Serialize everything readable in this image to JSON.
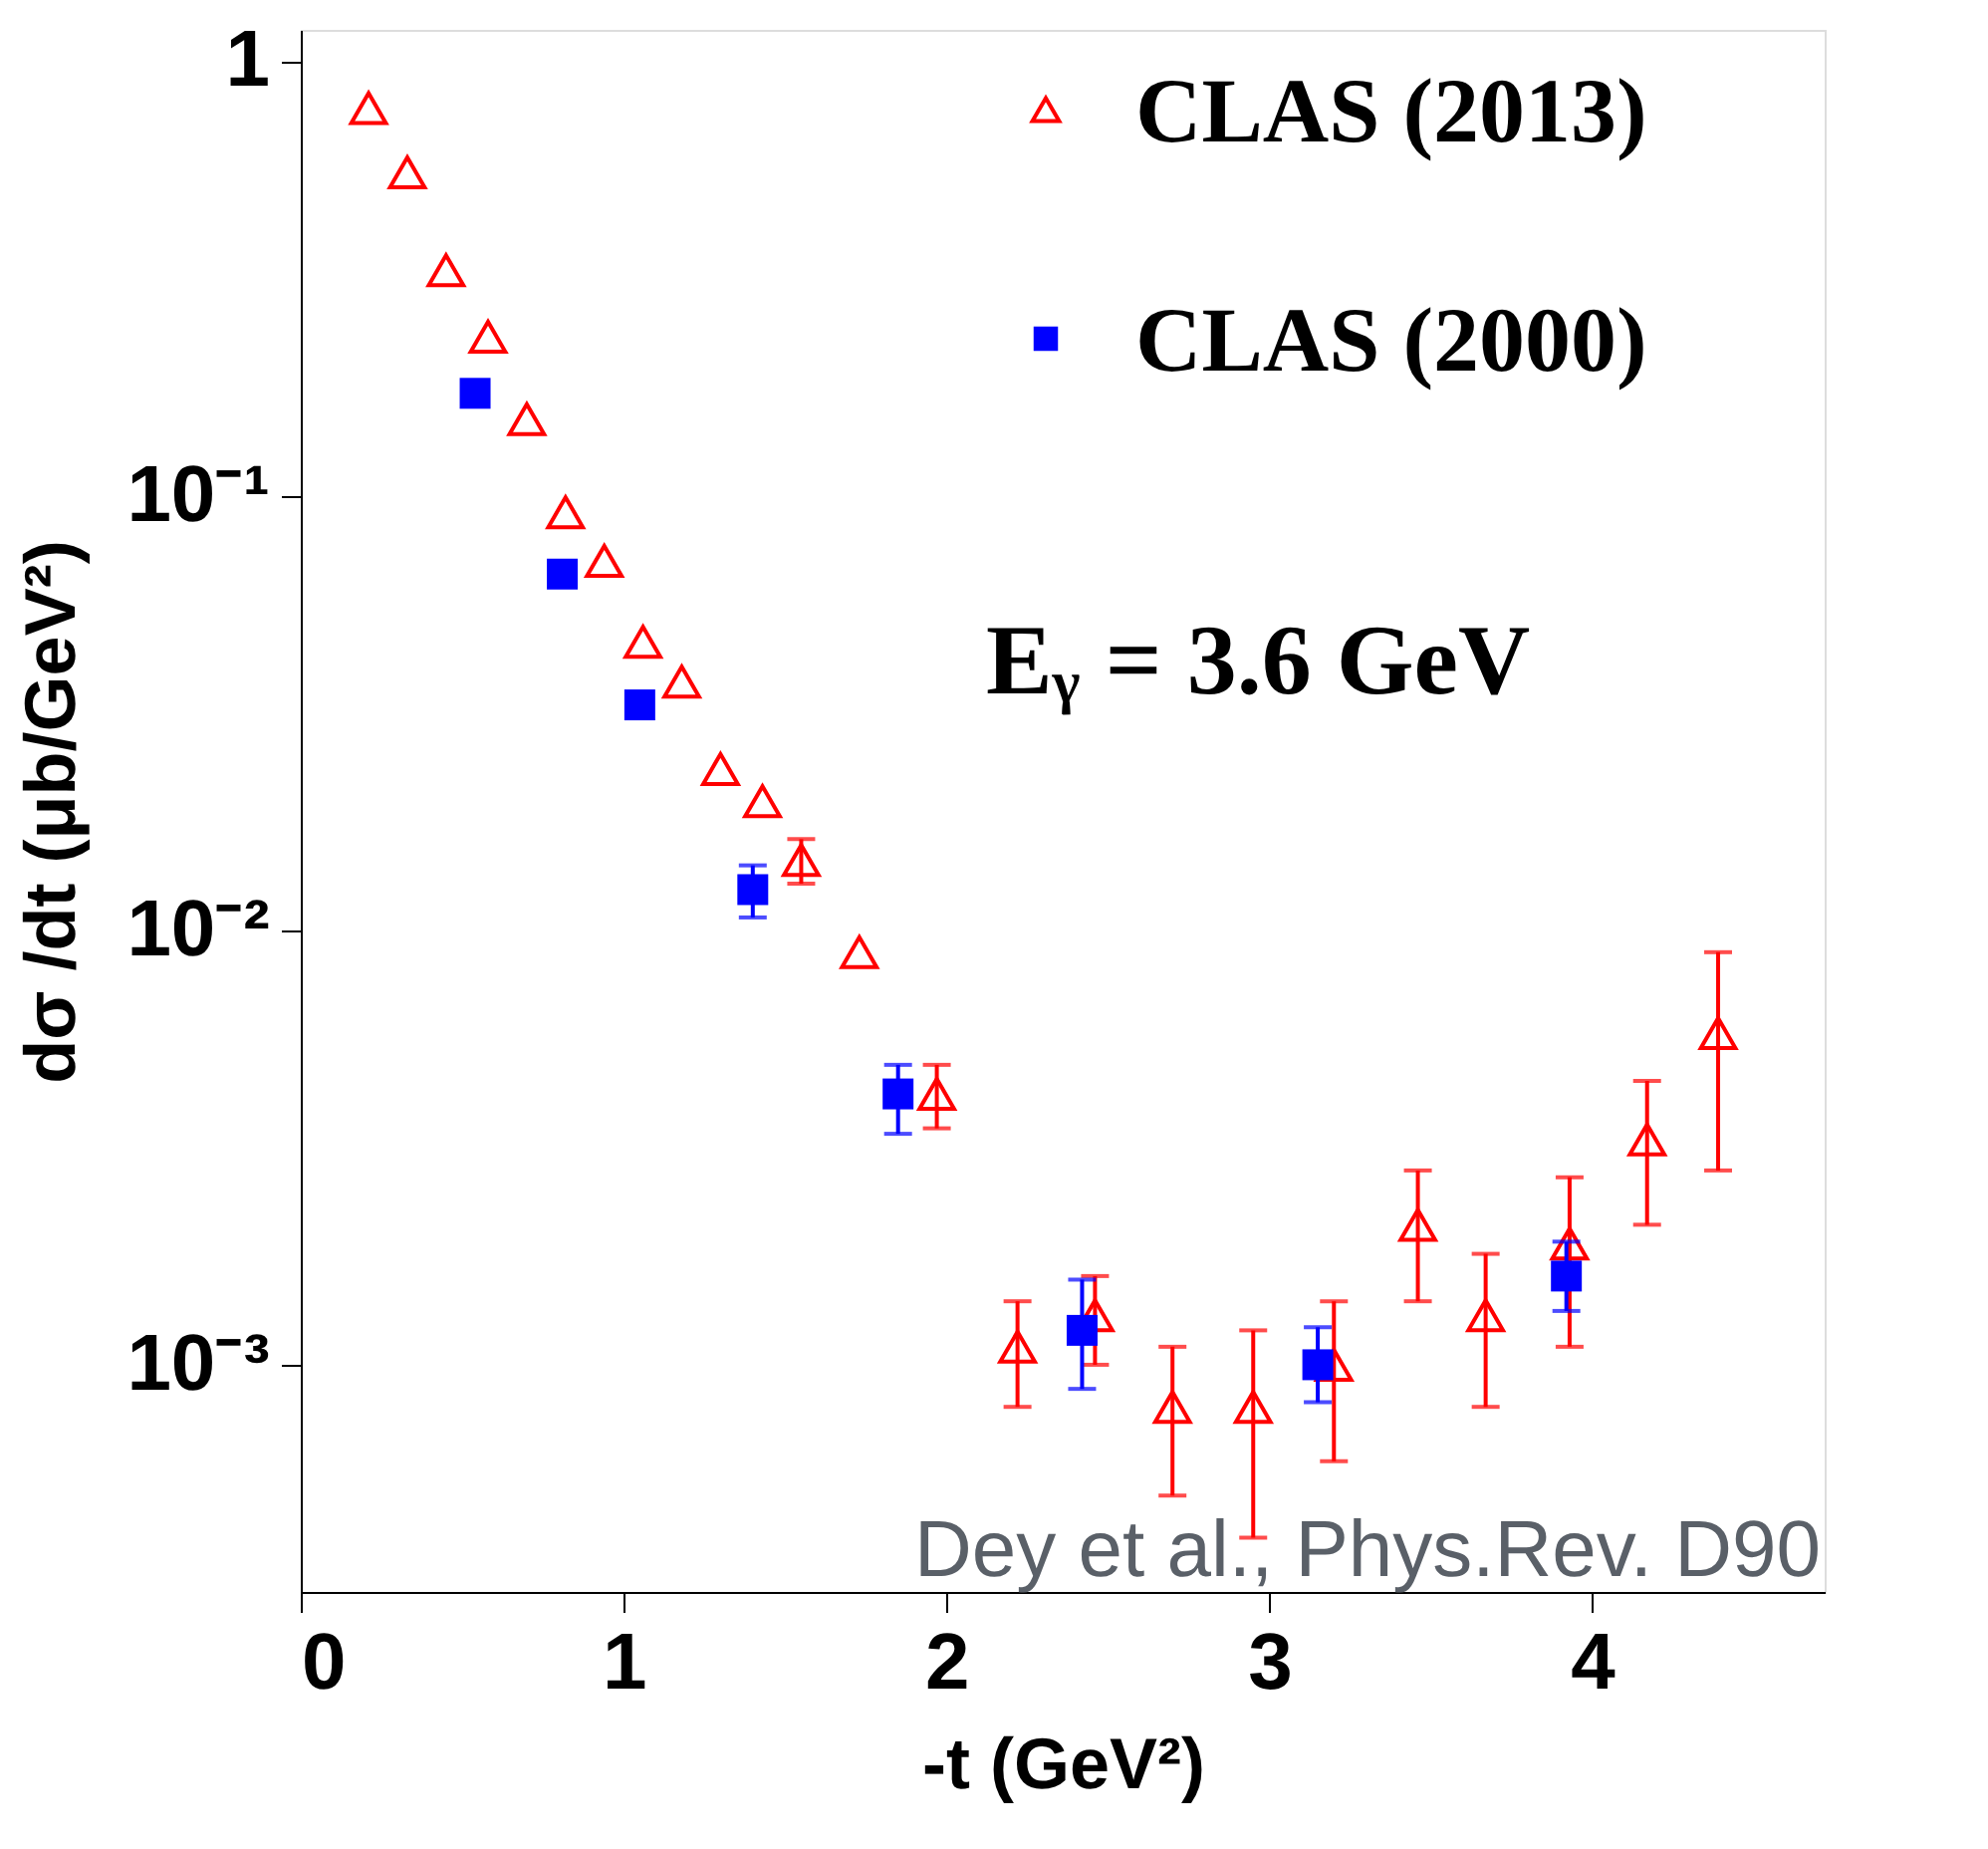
{
  "chart_data": {
    "type": "scatter",
    "xlabel": "-t (GeV²)",
    "ylabel": "dσ /dt (μb/GeV²)",
    "xlim": [
      0,
      4.72
    ],
    "xticks": [
      0,
      1,
      2,
      3,
      4
    ],
    "ylim": [
      0.0003,
      1.18
    ],
    "yticks": [
      {
        "value": 0.001,
        "label": "10⁻³"
      },
      {
        "value": 0.01,
        "label": "10⁻²"
      },
      {
        "value": 0.1,
        "label": "10⁻¹"
      },
      {
        "value": 1,
        "label": "1"
      }
    ],
    "log": "y",
    "grid": false,
    "legend": "top right",
    "annotations": [
      "Eᵧ = 3.6 GeV",
      "Dey et al., Phys.Rev. D90"
    ],
    "series": [
      {
        "name": "CLAS (2013)",
        "color": "#ff0000",
        "marker": "triangle",
        "x": [
          0.21,
          0.33,
          0.45,
          0.58,
          0.7,
          0.82,
          0.94,
          1.06,
          1.18,
          1.3,
          1.43,
          1.55,
          1.73,
          1.97,
          2.22,
          2.46,
          2.7,
          2.95,
          3.2,
          3.46,
          3.67,
          3.93,
          4.17,
          4.39
        ],
        "values": [
          0.78,
          0.555,
          0.33,
          0.232,
          0.15,
          0.0916,
          0.0708,
          0.0461,
          0.0373,
          0.0235,
          0.0198,
          0.0145,
          0.0089,
          0.0042,
          0.0011,
          0.0013,
          0.0008,
          0.0008,
          0.001,
          0.0021,
          0.0013,
          0.0019,
          0.0033,
          0.0058
        ],
        "errors": [
          null,
          null,
          null,
          null,
          null,
          null,
          null,
          null,
          null,
          null,
          null,
          [
            0.0128,
            0.0162
          ],
          null,
          [
            0.0035,
            0.0049
          ],
          [
            0.0008,
            0.0014
          ],
          [
            0.001,
            0.0016
          ],
          [
            0.0005,
            0.0011
          ],
          [
            0.0004,
            0.0012
          ],
          [
            0.0006,
            0.0014
          ],
          [
            0.0014,
            0.0028
          ],
          [
            0.0008,
            0.0018
          ],
          [
            0.0011,
            0.0027
          ],
          [
            0.0021,
            0.0045
          ],
          [
            0.0028,
            0.0089
          ]
        ]
      },
      {
        "name": "CLAS (2000)",
        "color": "#0000ff",
        "marker": "square",
        "x": [
          0.54,
          0.81,
          1.05,
          1.4,
          1.85,
          2.42,
          3.15,
          3.92
        ],
        "values": [
          0.172,
          0.066,
          0.033,
          0.0124,
          0.0042,
          0.0012,
          0.001,
          0.0016
        ],
        "errors": [
          null,
          null,
          null,
          [
            0.0107,
            0.0141
          ],
          [
            0.0034,
            0.0049
          ],
          [
            0.00088,
            0.00157
          ],
          [
            0.00082,
            0.00122
          ],
          [
            0.00133,
            0.00192
          ]
        ]
      }
    ]
  }
}
